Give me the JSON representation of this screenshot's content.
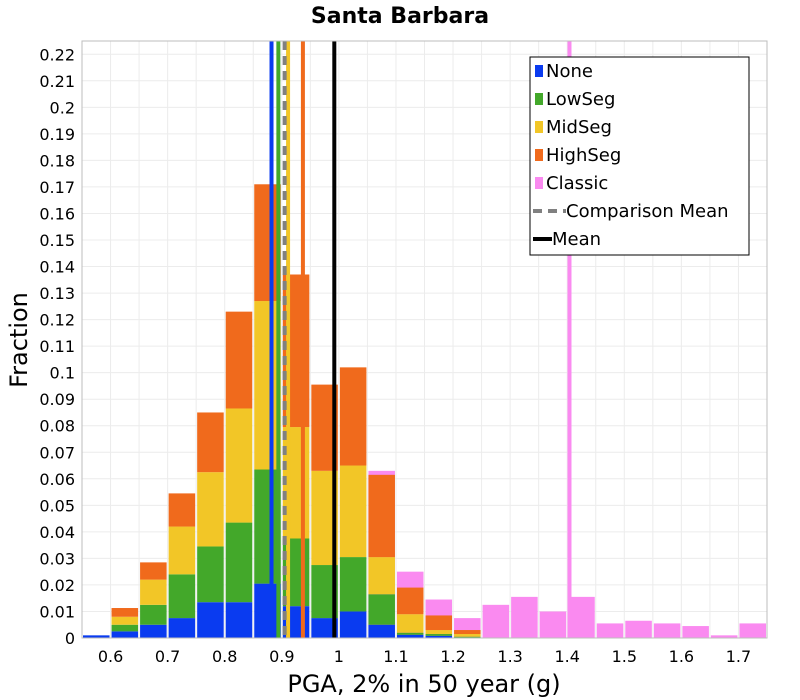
{
  "chart_data": {
    "type": "bar",
    "stacked": true,
    "title": "Santa Barbara",
    "xlabel": "PGA, 2% in 50 year (g)",
    "ylabel": "Fraction",
    "xlim": [
      0.55,
      1.75
    ],
    "ylim": [
      0,
      0.225
    ],
    "bin_width": 0.05,
    "x_ticks": [
      "0.6",
      "0.7",
      "0.8",
      "0.9",
      "1",
      "1.1",
      "1.2",
      "1.3",
      "1.4",
      "1.5",
      "1.6",
      "1.7"
    ],
    "y_ticks": [
      "0",
      "0.01",
      "0.02",
      "0.03",
      "0.04",
      "0.05",
      "0.06",
      "0.07",
      "0.08",
      "0.09",
      "0.1",
      "0.11",
      "0.12",
      "0.13",
      "0.14",
      "0.15",
      "0.16",
      "0.17",
      "0.18",
      "0.19",
      "0.2",
      "0.21",
      "0.22"
    ],
    "grid": true,
    "legend_position": "top-right",
    "bin_centers": [
      0.575,
      0.625,
      0.675,
      0.725,
      0.775,
      0.825,
      0.875,
      0.925,
      0.975,
      1.025,
      1.075,
      1.125,
      1.175,
      1.225
    ],
    "series": [
      {
        "name": "None",
        "color": "#0a3bf0",
        "values": [
          0.001,
          0.0025,
          0.005,
          0.0075,
          0.0135,
          0.0135,
          0.0205,
          0.012,
          0.0075,
          0.01,
          0.005,
          0.0012,
          0.0008,
          0.0002
        ]
      },
      {
        "name": "LowSeg",
        "color": "#43a82a",
        "values": [
          0,
          0.0025,
          0.0075,
          0.0165,
          0.021,
          0.03,
          0.043,
          0.0255,
          0.02,
          0.0205,
          0.0115,
          0.0008,
          0.0007,
          0.0003
        ]
      },
      {
        "name": "MidSeg",
        "color": "#f2c627",
        "values": [
          0,
          0.003,
          0.0095,
          0.018,
          0.028,
          0.043,
          0.0635,
          0.042,
          0.0355,
          0.0345,
          0.014,
          0.007,
          0.0015,
          0.001
        ]
      },
      {
        "name": "HighSeg",
        "color": "#f06a1c",
        "values": [
          0,
          0.0033,
          0.0065,
          0.0125,
          0.0225,
          0.0365,
          0.044,
          0.0575,
          0.0325,
          0.037,
          0.031,
          0.01,
          0.0055,
          0.0015
        ]
      }
    ],
    "classic": {
      "name": "Classic",
      "color": "#fa8af0",
      "bin_centers": [
        0.575,
        0.625,
        0.675,
        0.725,
        0.775,
        0.825,
        0.875,
        0.925,
        0.975,
        1.025,
        1.075,
        1.125,
        1.175,
        1.225,
        1.275,
        1.325,
        1.375,
        1.425,
        1.475,
        1.525,
        1.575,
        1.625,
        1.675,
        1.725
      ],
      "values": [
        0,
        0,
        0,
        0,
        0,
        0,
        0,
        0,
        0,
        0,
        0.063,
        0.025,
        0.0145,
        0.0075,
        0.0125,
        0.0155,
        0.01,
        0.0155,
        0.0055,
        0.0065,
        0.0055,
        0.0045,
        0.001,
        0.0055
      ]
    },
    "vertical_lines": [
      {
        "name": "None mean",
        "color": "#0a3bf0",
        "x": 0.882,
        "style": "solid"
      },
      {
        "name": "LowSeg mean",
        "color": "#43a82a",
        "x": 0.894,
        "style": "solid"
      },
      {
        "name": "MidSeg mean",
        "color": "#f2c627",
        "x": 0.911,
        "style": "solid"
      },
      {
        "name": "HighSeg mean",
        "color": "#f06a1c",
        "x": 0.937,
        "style": "solid"
      },
      {
        "name": "Classic mean",
        "color": "#fa8af0",
        "x": 1.404,
        "style": "solid"
      },
      {
        "name": "Comparison Mean",
        "color": "#808080",
        "x": 0.905,
        "style": "dashed"
      },
      {
        "name": "Mean",
        "color": "#000000",
        "x": 0.992,
        "style": "solid"
      }
    ],
    "legend": [
      {
        "label": "None",
        "color": "#0a3bf0",
        "kind": "box"
      },
      {
        "label": "LowSeg",
        "color": "#43a82a",
        "kind": "box"
      },
      {
        "label": "MidSeg",
        "color": "#f2c627",
        "kind": "box"
      },
      {
        "label": "HighSeg",
        "color": "#f06a1c",
        "kind": "box"
      },
      {
        "label": "Classic",
        "color": "#fa8af0",
        "kind": "box"
      },
      {
        "label": "Comparison Mean",
        "color": "#808080",
        "kind": "dashed"
      },
      {
        "label": "Mean",
        "color": "#000000",
        "kind": "line"
      }
    ]
  }
}
